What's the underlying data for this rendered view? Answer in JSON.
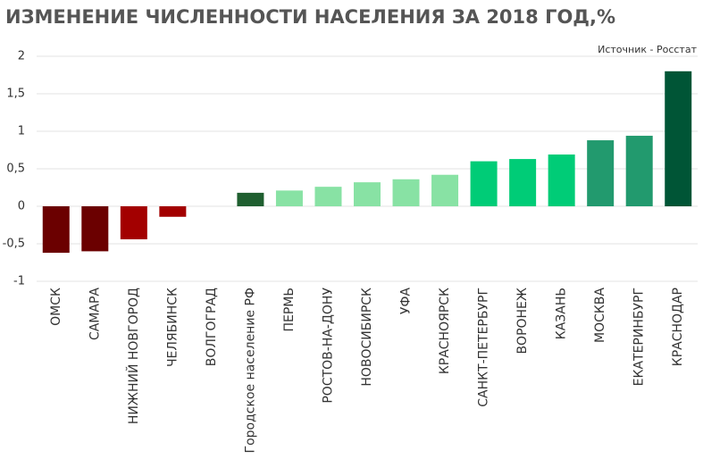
{
  "chart_data": {
    "type": "bar",
    "title": "ИЗМЕНЕНИЕ ЧИСЛЕННОСТИ НАСЕЛЕНИЯ ЗА 2018 ГОД,%",
    "source": "Источник - Росстат",
    "categories": [
      "ОМСК",
      "САМАРА",
      "НИЖНИЙ НОВГОРОД",
      "ЧЕЛЯБИНСК",
      "ВОЛГОГРАД",
      "Городское население РФ",
      "ПЕРМЬ",
      "РОСТОВ-НА-ДОНУ",
      "НОВОСИБИРСК",
      "УФА",
      "КРАСНОЯРСК",
      "САНКТ-ПЕТЕРБУРГ",
      "ВОРОНЕЖ",
      "КАЗАНЬ",
      "МОСКВА",
      "ЕКАТЕРИНБУРГ",
      "КРАСНОДАР"
    ],
    "values": [
      -0.62,
      -0.6,
      -0.44,
      -0.14,
      0,
      0.18,
      0.21,
      0.26,
      0.32,
      0.36,
      0.42,
      0.6,
      0.63,
      0.69,
      0.88,
      0.94,
      1.8
    ],
    "colors": [
      "#6b0000",
      "#6b0000",
      "#a30000",
      "#a30000",
      "#a30000",
      "#1f5f30",
      "#88e2a4",
      "#88e2a4",
      "#88e2a4",
      "#88e2a4",
      "#88e2a4",
      "#00cc77",
      "#00cc77",
      "#00cc77",
      "#229a6e",
      "#229a6e",
      "#005536"
    ],
    "ylim": [
      -1,
      2
    ],
    "yticks": [
      2,
      {
        "value": 1.5,
        "label": "1,5"
      },
      1,
      {
        "value": 0.5,
        "label": "0,5"
      },
      0,
      {
        "value": -0.5,
        "label": "-0,5"
      },
      -1
    ],
    "grid": true
  }
}
